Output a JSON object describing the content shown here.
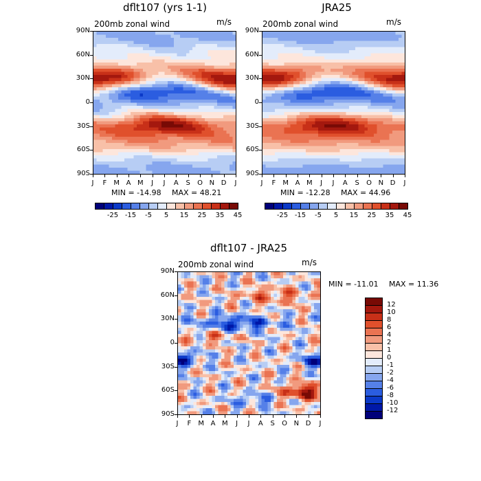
{
  "chart_data": [
    {
      "type": "heatmap",
      "title": "dflt107 (yrs 1-1)",
      "subtitle": "200mb zonal wind",
      "units": "m/s",
      "x_ticks": [
        "J",
        "F",
        "M",
        "A",
        "M",
        "J",
        "J",
        "A",
        "S",
        "O",
        "N",
        "D",
        "J"
      ],
      "y_ticks": [
        "90N",
        "60N",
        "30N",
        "0",
        "30S",
        "60S",
        "90S"
      ],
      "min_label": "MIN = -14.98",
      "max_label": "MAX =  48.21",
      "colorbar": {
        "colors": [
          "#00007a",
          "#0018a8",
          "#0b39c8",
          "#2b5de0",
          "#5580e8",
          "#86a6ee",
          "#b7cdf4",
          "#e3ecfb",
          "#fde6dc",
          "#f8c0a8",
          "#f19a7e",
          "#ea7352",
          "#e0502c",
          "#c83018",
          "#a4180e",
          "#780a05"
        ],
        "labels": [
          "-25",
          "-15",
          "-5",
          "5",
          "15",
          "25",
          "35",
          "45"
        ]
      },
      "features": [
        {
          "kind": "jet",
          "lat": 33,
          "month": 0.5,
          "value": 48
        },
        {
          "kind": "jet",
          "lat": 33,
          "month": 11.5,
          "value": 42
        },
        {
          "kind": "jet",
          "lat": -28,
          "month": 7.5,
          "value": 45
        },
        {
          "kind": "jet",
          "lat": -50,
          "month": 0.5,
          "value": 30
        },
        {
          "kind": "easterly",
          "lat": 8,
          "month": 7.0,
          "value": -15
        }
      ]
    },
    {
      "type": "heatmap",
      "title": "JRA25",
      "subtitle": "200mb zonal wind",
      "units": "m/s",
      "x_ticks": [
        "J",
        "F",
        "M",
        "A",
        "M",
        "J",
        "J",
        "A",
        "S",
        "O",
        "N",
        "D",
        "J"
      ],
      "y_ticks": [
        "90N",
        "60N",
        "30N",
        "0",
        "30S",
        "60S",
        "90S"
      ],
      "min_label": "MIN = -12.28",
      "max_label": "MAX =  44.96",
      "colorbar": {
        "colors": [
          "#00007a",
          "#0018a8",
          "#0b39c8",
          "#2b5de0",
          "#5580e8",
          "#86a6ee",
          "#b7cdf4",
          "#e3ecfb",
          "#fde6dc",
          "#f8c0a8",
          "#f19a7e",
          "#ea7352",
          "#e0502c",
          "#c83018",
          "#a4180e",
          "#780a05"
        ],
        "labels": [
          "-25",
          "-15",
          "-5",
          "5",
          "15",
          "25",
          "35",
          "45"
        ]
      },
      "features": [
        {
          "kind": "jet",
          "lat": 30,
          "month": 0.5,
          "value": 45
        },
        {
          "kind": "jet",
          "lat": 30,
          "month": 11.5,
          "value": 42
        },
        {
          "kind": "jet",
          "lat": -28,
          "month": 7.0,
          "value": 40
        },
        {
          "kind": "jet",
          "lat": -50,
          "month": 1.5,
          "value": 28
        },
        {
          "kind": "easterly",
          "lat": 8,
          "month": 7.0,
          "value": -12
        }
      ]
    },
    {
      "type": "heatmap",
      "title": "dflt107 - JRA25",
      "subtitle": "200mb zonal wind",
      "units": "m/s",
      "x_ticks": [
        "J",
        "F",
        "M",
        "A",
        "M",
        "J",
        "J",
        "A",
        "S",
        "O",
        "N",
        "D",
        "J"
      ],
      "y_ticks": [
        "90N",
        "60N",
        "30N",
        "0",
        "30S",
        "60S",
        "90S"
      ],
      "min_label": "MIN = -11.01",
      "max_label": "MAX =  11.36",
      "colorbar": {
        "colors": [
          "#00007a",
          "#0018a8",
          "#0b39c8",
          "#2b5de0",
          "#5580e8",
          "#86a6ee",
          "#b7cdf4",
          "#e3ecfb",
          "#fde6dc",
          "#f8c0a8",
          "#f19a7e",
          "#ea7352",
          "#e0502c",
          "#c83018",
          "#a4180e",
          "#780a05"
        ],
        "labels": [
          "12",
          "10",
          "8",
          "6",
          "4",
          "2",
          "1",
          "0",
          "-1",
          "-2",
          "-4",
          "-6",
          "-8",
          "-10",
          "-12"
        ]
      },
      "features": [
        {
          "kind": "anomaly",
          "lat": -62,
          "month": 10.5,
          "value": 11
        },
        {
          "kind": "anomaly",
          "lat": -20,
          "month": 0.3,
          "value": -10
        },
        {
          "kind": "anomaly",
          "lat": -22,
          "month": 11.7,
          "value": -9
        },
        {
          "kind": "anomaly",
          "lat": 25,
          "month": 5.0,
          "value": -8
        }
      ]
    }
  ]
}
